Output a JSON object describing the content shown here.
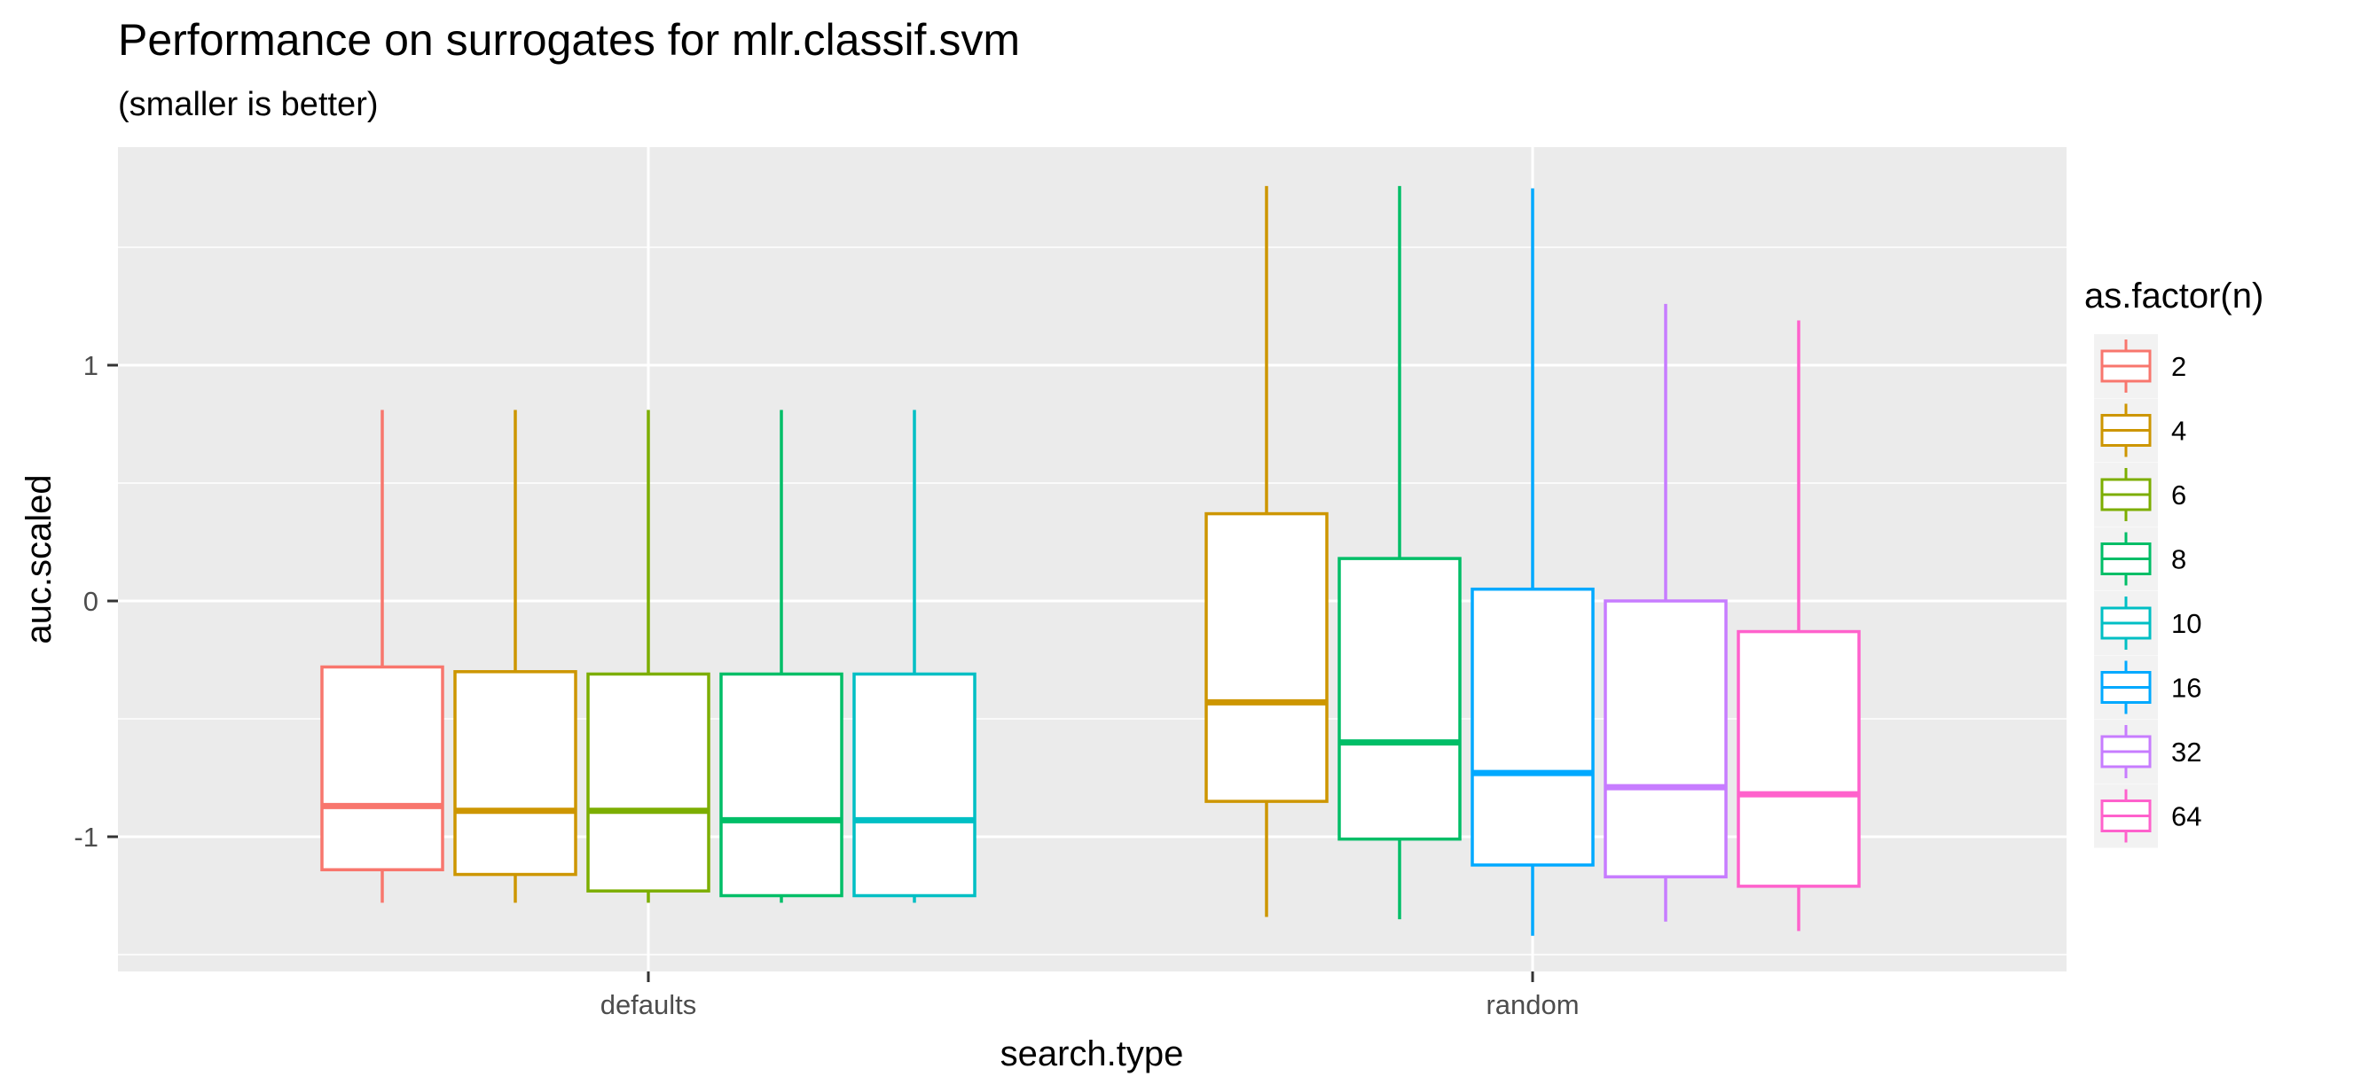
{
  "chart_data": {
    "type": "boxplot",
    "title": "Performance on surrogates for mlr.classif.svm",
    "subtitle": "(smaller is better)",
    "xlabel": "search.type",
    "ylabel": "auc.scaled",
    "categories": [
      "defaults",
      "random"
    ],
    "ylim": [
      -1.5,
      1.9
    ],
    "yticks": [
      -1,
      0,
      1
    ],
    "ytick_labels": [
      "-1",
      "0",
      "1"
    ],
    "grid": true,
    "legend": {
      "title": "as.factor(n)",
      "position": "right"
    },
    "series": [
      {
        "name": "2",
        "color": "#F8766D",
        "boxes": [
          {
            "category": "defaults",
            "min": -1.28,
            "q1": -1.14,
            "median": -0.87,
            "q3": -0.28,
            "max": 0.81
          }
        ]
      },
      {
        "name": "4",
        "color": "#CD9600",
        "boxes": [
          {
            "category": "defaults",
            "min": -1.28,
            "q1": -1.16,
            "median": -0.89,
            "q3": -0.3,
            "max": 0.81
          },
          {
            "category": "random",
            "min": -1.34,
            "q1": -0.85,
            "median": -0.43,
            "q3": 0.37,
            "max": 1.76
          }
        ]
      },
      {
        "name": "6",
        "color": "#7CAE00",
        "boxes": [
          {
            "category": "defaults",
            "min": -1.28,
            "q1": -1.23,
            "median": -0.89,
            "q3": -0.31,
            "max": 0.81
          }
        ]
      },
      {
        "name": "8",
        "color": "#00BE67",
        "boxes": [
          {
            "category": "defaults",
            "min": -1.28,
            "q1": -1.25,
            "median": -0.93,
            "q3": -0.31,
            "max": 0.81
          },
          {
            "category": "random",
            "min": -1.35,
            "q1": -1.01,
            "median": -0.6,
            "q3": 0.18,
            "max": 1.76
          }
        ]
      },
      {
        "name": "10",
        "color": "#00BFC4",
        "boxes": [
          {
            "category": "defaults",
            "min": -1.28,
            "q1": -1.25,
            "median": -0.93,
            "q3": -0.31,
            "max": 0.81
          }
        ]
      },
      {
        "name": "16",
        "color": "#00A9FF",
        "boxes": [
          {
            "category": "random",
            "min": -1.42,
            "q1": -1.12,
            "median": -0.73,
            "q3": 0.05,
            "max": 1.75
          }
        ]
      },
      {
        "name": "32",
        "color": "#C77CFF",
        "boxes": [
          {
            "category": "random",
            "min": -1.36,
            "q1": -1.17,
            "median": -0.79,
            "q3": 0.0,
            "max": 1.26
          }
        ]
      },
      {
        "name": "64",
        "color": "#FF61CC",
        "boxes": [
          {
            "category": "random",
            "min": -1.4,
            "q1": -1.21,
            "median": -0.82,
            "q3": -0.13,
            "max": 1.19
          }
        ]
      }
    ]
  }
}
